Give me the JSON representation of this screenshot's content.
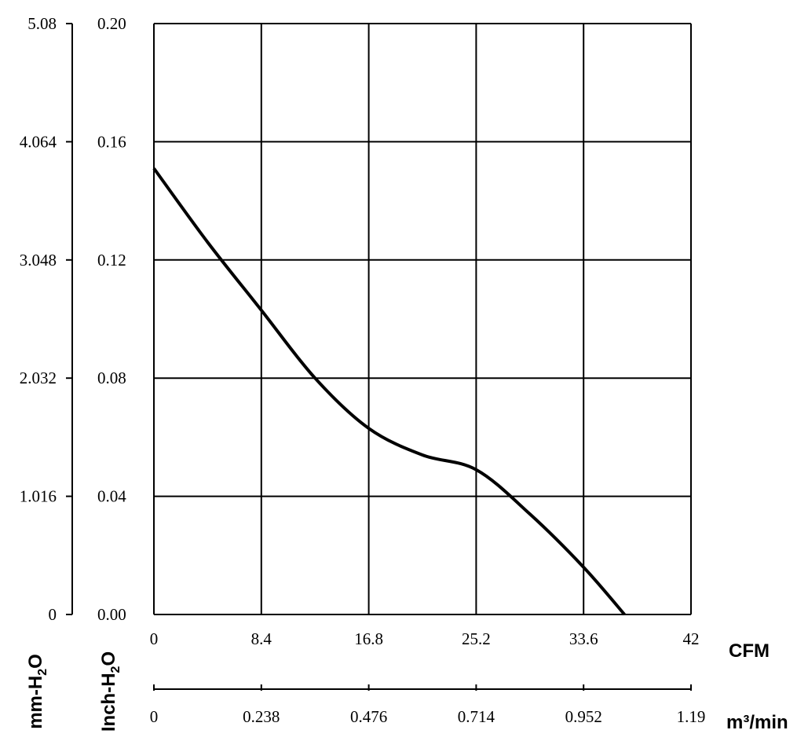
{
  "chart_data": {
    "type": "line",
    "title": "",
    "x_axes": [
      {
        "label": "CFM",
        "range": [
          0,
          42
        ],
        "ticks": [
          "0",
          "8.4",
          "16.8",
          "25.2",
          "33.6",
          "42"
        ]
      },
      {
        "label": "m³/min",
        "range": [
          0,
          1.19
        ],
        "ticks": [
          "0",
          "0.238",
          "0.476",
          "0.714",
          "0.952",
          "1.19"
        ]
      }
    ],
    "y_axes": [
      {
        "label": "Inch-H₂O",
        "label_main": "Inch-H",
        "label_sub": "2",
        "label_tail": "O",
        "range": [
          0,
          0.2
        ],
        "ticks": [
          "0.00",
          "0.04",
          "0.08",
          "0.12",
          "0.16",
          "0.20"
        ]
      },
      {
        "label": "mm-H₂O",
        "label_main": "mm-H",
        "label_sub": "2",
        "label_tail": "O",
        "range": [
          0,
          5.08
        ],
        "ticks": [
          "0",
          "1.016",
          "2.032",
          "3.048",
          "4.064",
          "5.08"
        ]
      }
    ],
    "grid": true,
    "series": [
      {
        "x": [
          0,
          4.2,
          8.4,
          12.6,
          16.8,
          21,
          25.2,
          29.4,
          33.6,
          36.8
        ],
        "y": [
          0.151,
          0.126,
          0.103,
          0.08,
          0.063,
          0.054,
          0.049,
          0.034,
          0.016,
          0.0
        ]
      }
    ]
  }
}
